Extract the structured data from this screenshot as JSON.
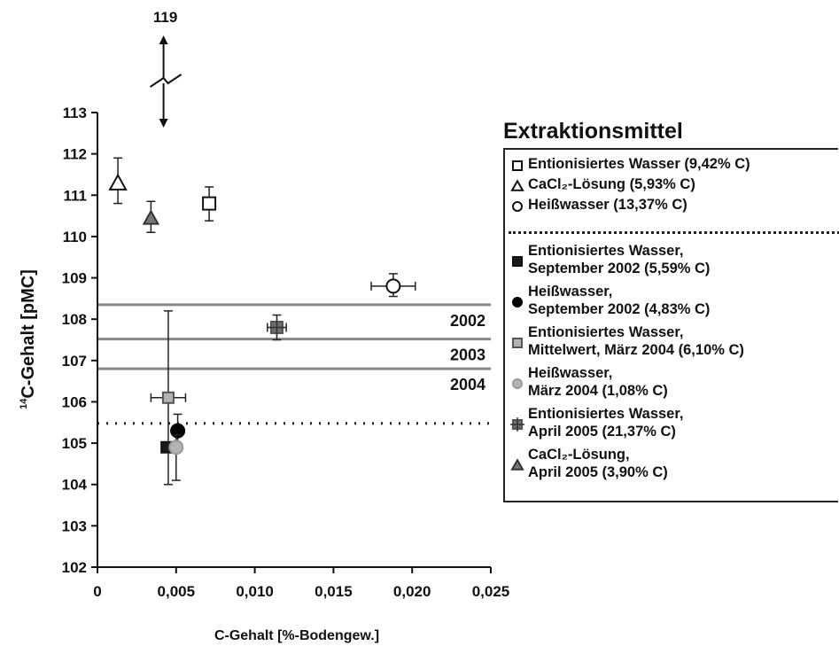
{
  "chart_data": {
    "type": "scatter",
    "title": "",
    "xlabel": "C-Gehalt [%-Bodengew.]",
    "ylabel_super": "14",
    "ylabel": "C-Gehalt [pMC]",
    "xlim": [
      0,
      0.025
    ],
    "ylim": [
      102,
      113
    ],
    "x_ticks": [
      "0",
      "0,005",
      "0,010",
      "0,015",
      "0,020",
      "0,025"
    ],
    "y_ticks": [
      "102",
      "103",
      "104",
      "105",
      "106",
      "107",
      "108",
      "109",
      "110",
      "111",
      "112",
      "113"
    ],
    "grid": false,
    "break_arrow": {
      "label": "119",
      "x": 0.0042
    },
    "reference_lines": [
      {
        "label": "2002",
        "y": 108.35,
        "style": "solid"
      },
      {
        "label": "2003",
        "y": 107.52,
        "style": "solid"
      },
      {
        "label": "2004",
        "y": 106.8,
        "style": "solid"
      },
      {
        "label": "",
        "y": 105.48,
        "style": "dotted"
      }
    ],
    "series": [
      {
        "name": "Entionisiertes Wasser (9,42% C)",
        "marker": "square-open",
        "color": "#ffffff",
        "points": [
          {
            "x": 0.0071,
            "y": 110.8,
            "yerr_low": 110.38,
            "yerr_high": 111.2
          }
        ]
      },
      {
        "name": "CaCl₂-Lösung (5,93% C)",
        "marker": "triangle-open",
        "color": "#ffffff",
        "points": [
          {
            "x": 0.0013,
            "y": 111.3,
            "yerr_low": 110.8,
            "yerr_high": 111.9
          }
        ]
      },
      {
        "name": "Heißwasser (13,37% C)",
        "marker": "circle-open",
        "color": "#ffffff",
        "points": [
          {
            "x": 0.0188,
            "y": 108.8,
            "yerr_low": 108.55,
            "yerr_high": 109.1,
            "xerr_low": 0.0174,
            "xerr_high": 0.0202
          }
        ]
      },
      {
        "name": "Entionisiertes Wasser, September 2002 (5,59% C)",
        "marker": "square",
        "color": "#1a1a1a",
        "points": [
          {
            "x": 0.0044,
            "y": 104.9
          }
        ]
      },
      {
        "name": "Heißwasser, September 2002 (4,83% C)",
        "marker": "circle",
        "color": "#000000",
        "points": [
          {
            "x": 0.0051,
            "y": 105.3,
            "yerr_low": 104.9,
            "yerr_high": 105.7
          }
        ]
      },
      {
        "name": "Entionisiertes Wasser, Mittelwert, März 2004 (6,10% C)",
        "marker": "square",
        "color": "#b3b3b3",
        "points": [
          {
            "x": 0.0045,
            "y": 106.1,
            "yerr_low": 104.0,
            "yerr_high": 108.2,
            "xerr_low": 0.0034,
            "xerr_high": 0.0056
          }
        ]
      },
      {
        "name": "Heißwasser, März 2004 (1,08% C)",
        "marker": "circle",
        "color": "#b3b3b3",
        "points": [
          {
            "x": 0.005,
            "y": 104.9,
            "yerr_low": 104.1,
            "yerr_high": 105.2
          }
        ]
      },
      {
        "name": "Entionisiertes Wasser, April 2005 (21,37% C)",
        "marker": "square-cross",
        "color": "#6e6e6e",
        "points": [
          {
            "x": 0.0114,
            "y": 107.8,
            "yerr_low": 107.5,
            "yerr_high": 108.1,
            "xerr_low": 0.0108,
            "xerr_high": 0.012
          }
        ]
      },
      {
        "name": "CaCl₂-Lösung, April 2005 (3,90% C)",
        "marker": "triangle",
        "color": "#777777",
        "points": [
          {
            "x": 0.0034,
            "y": 110.45,
            "yerr_low": 110.1,
            "yerr_high": 110.85
          }
        ]
      }
    ],
    "legend": {
      "title": "Extraktionsmittel",
      "placement": "right",
      "items": [
        {
          "lines": [
            "Entionisiertes Wasser (9,42% C)"
          ]
        },
        {
          "lines": [
            "CaCl₂-Lösung (5,93% C)"
          ]
        },
        {
          "lines": [
            "Heißwasser (13,37% C)"
          ]
        },
        {
          "lines": [
            "Entionisiertes Wasser,",
            "September 2002 (5,59% C)"
          ]
        },
        {
          "lines": [
            "Heißwasser,",
            "September 2002 (4,83% C)"
          ]
        },
        {
          "lines": [
            "Entionisiertes Wasser,",
            "Mittelwert, März 2004 (6,10% C)"
          ]
        },
        {
          "lines": [
            "Heißwasser,",
            "März 2004 (1,08% C)"
          ]
        },
        {
          "lines": [
            "Entionisiertes Wasser,",
            "April 2005 (21,37% C)"
          ]
        },
        {
          "lines": [
            "CaCl₂-Lösung,",
            "April 2005 (3,90% C)"
          ]
        }
      ]
    }
  }
}
